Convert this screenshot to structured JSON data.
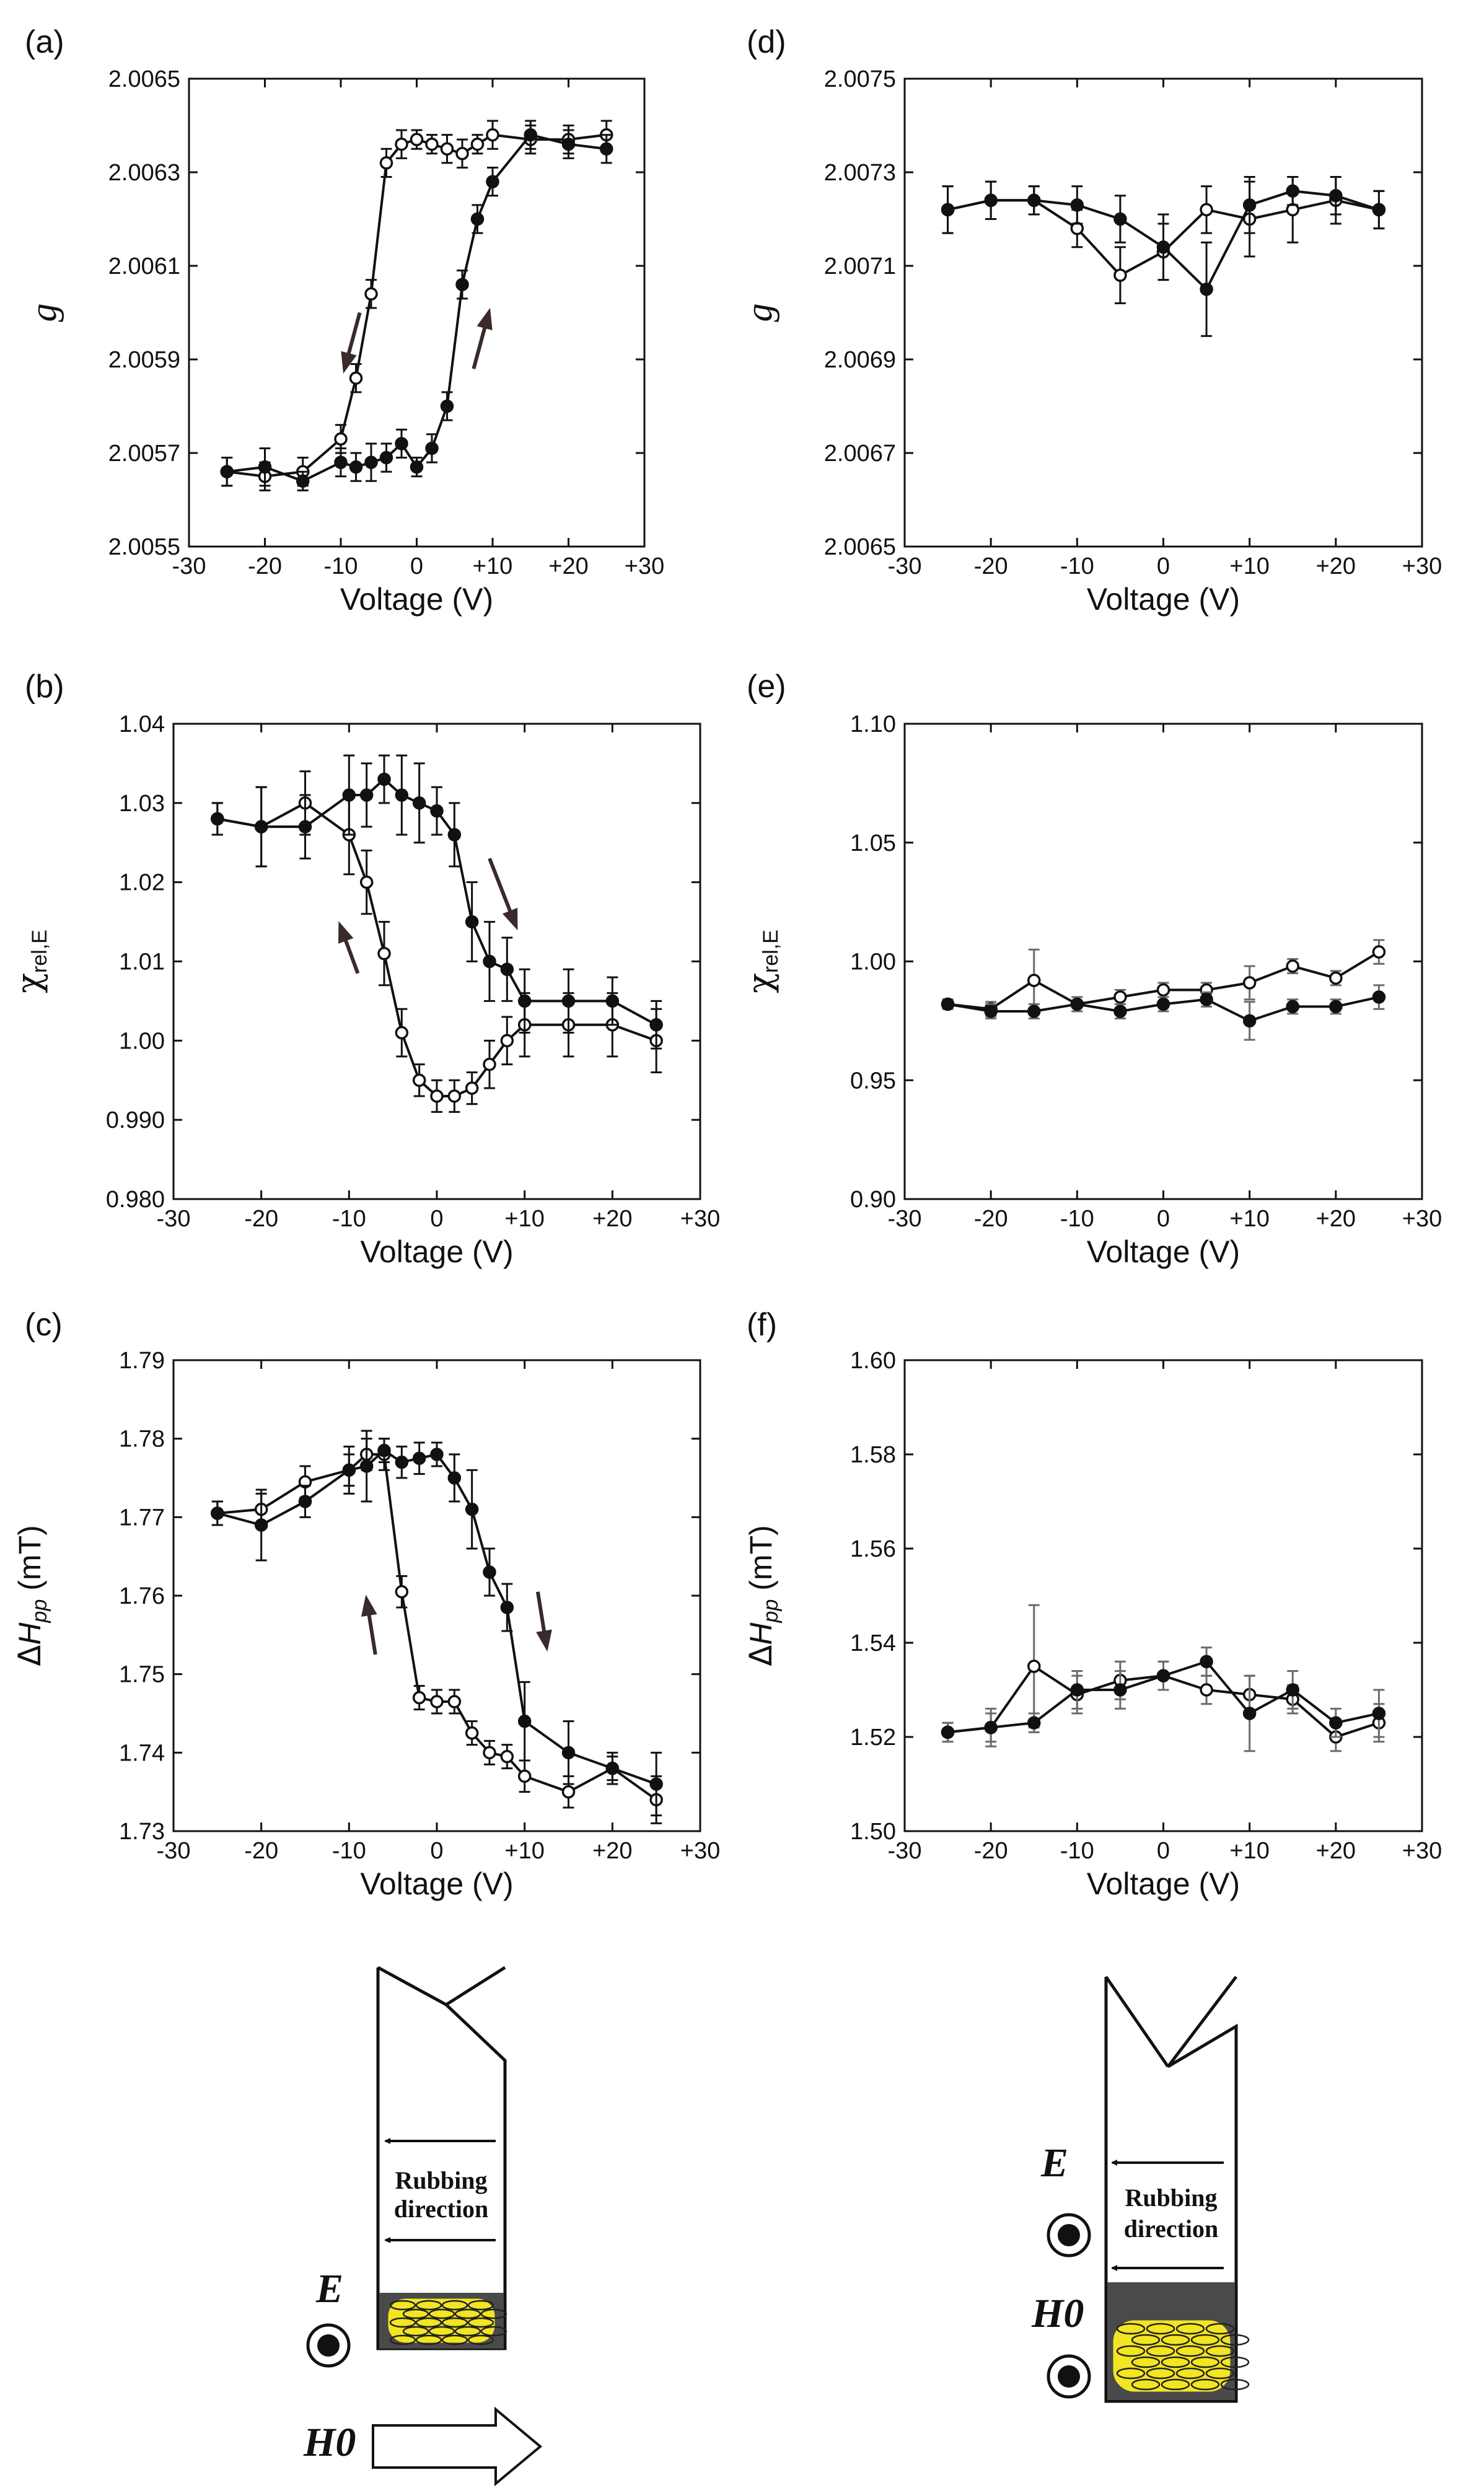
{
  "chart_data": [
    {
      "id": "a",
      "type": "line",
      "panel_label": "(a)",
      "ylabel": "g",
      "xlabel": "Voltage (V)",
      "xlim": [
        -30,
        30
      ],
      "ylim": [
        2.0055,
        2.0065
      ],
      "x_ticks": [
        -30,
        -20,
        -10,
        0,
        10,
        20,
        30
      ],
      "x_tick_labels": [
        "-30",
        "-20",
        "-10",
        "0",
        "+10",
        "+20",
        "+30"
      ],
      "y_ticks": [
        2.0055,
        2.0057,
        2.0059,
        2.0061,
        2.0063,
        2.0065
      ],
      "y_tick_labels": [
        "2.0055",
        "2.0057",
        "2.0059",
        "2.0061",
        "2.0063",
        "2.0065"
      ],
      "series": [
        {
          "marker": "open",
          "x": [
            -25,
            -20,
            -15,
            -10,
            -8,
            -6,
            -4,
            -2,
            0,
            2,
            4,
            6,
            8,
            10,
            15,
            20,
            25
          ],
          "y": [
            2.00566,
            2.00565,
            2.00566,
            2.00573,
            2.00586,
            2.00604,
            2.00632,
            2.00636,
            2.00637,
            2.00636,
            2.00635,
            2.00634,
            2.00636,
            2.00638,
            2.00637,
            2.00637,
            2.00638
          ],
          "err": [
            3e-05,
            3e-05,
            3e-05,
            3e-05,
            3e-05,
            3e-05,
            3e-05,
            3e-05,
            2e-05,
            2e-05,
            3e-05,
            3e-05,
            2e-05,
            3e-05,
            3e-05,
            3e-05,
            3e-05
          ]
        },
        {
          "marker": "filled",
          "x": [
            -25,
            -20,
            -15,
            -10,
            -8,
            -6,
            -4,
            -2,
            0,
            2,
            4,
            6,
            8,
            10,
            15,
            20,
            25
          ],
          "y": [
            2.00566,
            2.00567,
            2.00564,
            2.00568,
            2.00567,
            2.00568,
            2.00569,
            2.00572,
            2.00567,
            2.00571,
            2.0058,
            2.00606,
            2.0062,
            2.00628,
            2.00638,
            2.00636,
            2.00635
          ],
          "err": [
            3e-05,
            4e-05,
            2e-05,
            3e-05,
            3e-05,
            4e-05,
            3e-05,
            3e-05,
            2e-05,
            3e-05,
            3e-05,
            3e-05,
            3e-05,
            3e-05,
            3e-05,
            3e-05,
            3e-05
          ]
        }
      ],
      "arrows": [
        {
          "x1": -7.5,
          "y1": 2.006,
          "x2": -9.5,
          "y2": 2.00588
        },
        {
          "x1": 7.5,
          "y1": 2.00588,
          "x2": 9.5,
          "y2": 2.006
        }
      ]
    },
    {
      "id": "d",
      "type": "line",
      "panel_label": "(d)",
      "ylabel": "g",
      "xlabel": "Voltage (V)",
      "xlim": [
        -30,
        30
      ],
      "ylim": [
        2.0065,
        2.0075
      ],
      "x_ticks": [
        -30,
        -20,
        -10,
        0,
        10,
        20,
        30
      ],
      "x_tick_labels": [
        "-30",
        "-20",
        "-10",
        "0",
        "+10",
        "+20",
        "+30"
      ],
      "y_ticks": [
        2.0065,
        2.0067,
        2.0069,
        2.0071,
        2.0073,
        2.0075
      ],
      "y_tick_labels": [
        "2.0065",
        "2.0067",
        "2.0069",
        "2.0071",
        "2.0073",
        "2.0075"
      ],
      "series": [
        {
          "marker": "open",
          "x": [
            -25,
            -20,
            -15,
            -10,
            -5,
            0,
            5,
            10,
            15,
            20,
            25
          ],
          "y": [
            2.00722,
            2.00724,
            2.00724,
            2.00718,
            2.00708,
            2.00713,
            2.00722,
            2.0072,
            2.00722,
            2.00724,
            2.00722
          ],
          "err": [
            5e-05,
            4e-05,
            3e-05,
            4e-05,
            6e-05,
            6e-05,
            5e-05,
            8e-05,
            7e-05,
            5e-05,
            4e-05
          ]
        },
        {
          "marker": "filled",
          "x": [
            -25,
            -20,
            -15,
            -10,
            -5,
            0,
            5,
            10,
            15,
            20,
            25
          ],
          "y": [
            2.00722,
            2.00724,
            2.00724,
            2.00723,
            2.0072,
            2.00714,
            2.00705,
            2.00723,
            2.00726,
            2.00725,
            2.00722
          ],
          "err": [
            5e-05,
            4e-05,
            3e-05,
            4e-05,
            5e-05,
            7e-05,
            0.0001,
            6e-05,
            3e-05,
            4e-05,
            4e-05
          ]
        }
      ]
    },
    {
      "id": "b",
      "type": "line",
      "panel_label": "(b)",
      "ylabel": "χrel,E",
      "xlabel": "Voltage (V)",
      "xlim": [
        -30,
        30
      ],
      "ylim": [
        0.98,
        1.04
      ],
      "x_ticks": [
        -30,
        -20,
        -10,
        0,
        10,
        20,
        30
      ],
      "x_tick_labels": [
        "-30",
        "-20",
        "-10",
        "0",
        "+10",
        "+20",
        "+30"
      ],
      "y_ticks": [
        0.98,
        0.99,
        1.0,
        1.01,
        1.02,
        1.03,
        1.04
      ],
      "y_tick_labels": [
        "0.980",
        "0.990",
        "1.00",
        "1.01",
        "1.02",
        "1.03",
        "1.04"
      ],
      "series": [
        {
          "marker": "open",
          "x": [
            -25,
            -20,
            -15,
            -10,
            -8,
            -6,
            -4,
            -2,
            0,
            2,
            4,
            6,
            8,
            10,
            15,
            20,
            25
          ],
          "y": [
            1.028,
            1.027,
            1.03,
            1.026,
            1.02,
            1.011,
            1.001,
            0.995,
            0.993,
            0.993,
            0.994,
            0.997,
            1.0,
            1.002,
            1.002,
            1.002,
            1.0
          ],
          "err": [
            0.002,
            0.005,
            0.004,
            0.005,
            0.004,
            0.004,
            0.003,
            0.002,
            0.002,
            0.002,
            0.002,
            0.003,
            0.003,
            0.004,
            0.004,
            0.004,
            0.004
          ]
        },
        {
          "marker": "filled",
          "x": [
            -25,
            -20,
            -15,
            -10,
            -8,
            -6,
            -4,
            -2,
            0,
            2,
            4,
            6,
            8,
            10,
            15,
            20,
            25
          ],
          "y": [
            1.028,
            1.027,
            1.027,
            1.031,
            1.031,
            1.033,
            1.031,
            1.03,
            1.029,
            1.026,
            1.015,
            1.01,
            1.009,
            1.005,
            1.005,
            1.005,
            1.002
          ],
          "err": [
            0.002,
            0.005,
            0.004,
            0.005,
            0.004,
            0.003,
            0.005,
            0.005,
            0.003,
            0.004,
            0.005,
            0.005,
            0.004,
            0.004,
            0.004,
            0.003,
            0.003
          ]
        }
      ],
      "arrows": [
        {
          "x1": -9,
          "y1": 1.0085,
          "x2": -11,
          "y2": 1.0145
        },
        {
          "x1": 6,
          "y1": 1.023,
          "x2": 9,
          "y2": 1.0145
        }
      ]
    },
    {
      "id": "e",
      "type": "line",
      "panel_label": "(e)",
      "ylabel": "χrel,E",
      "xlabel": "Voltage (V)",
      "xlim": [
        -30,
        30
      ],
      "ylim": [
        0.9,
        1.1
      ],
      "x_ticks": [
        -30,
        -20,
        -10,
        0,
        10,
        20,
        30
      ],
      "x_tick_labels": [
        "-30",
        "-20",
        "-10",
        "0",
        "+10",
        "+20",
        "+30"
      ],
      "y_ticks": [
        0.9,
        0.95,
        1.0,
        1.05,
        1.1
      ],
      "y_tick_labels": [
        "0.90",
        "0.95",
        "1.00",
        "1.05",
        "1.10"
      ],
      "series": [
        {
          "marker": "open",
          "x": [
            -25,
            -20,
            -15,
            -10,
            -5,
            0,
            5,
            10,
            15,
            20,
            25
          ],
          "y": [
            0.982,
            0.98,
            0.992,
            0.982,
            0.985,
            0.988,
            0.988,
            0.991,
            0.998,
            0.993,
            1.004
          ],
          "err": [
            0.002,
            0.003,
            0.013,
            0.003,
            0.003,
            0.003,
            0.003,
            0.007,
            0.003,
            0.003,
            0.005
          ]
        },
        {
          "marker": "filled",
          "x": [
            -25,
            -20,
            -15,
            -10,
            -5,
            0,
            5,
            10,
            15,
            20,
            25
          ],
          "y": [
            0.982,
            0.979,
            0.979,
            0.982,
            0.979,
            0.982,
            0.984,
            0.975,
            0.981,
            0.981,
            0.985
          ],
          "err": [
            0.002,
            0.003,
            0.003,
            0.003,
            0.003,
            0.003,
            0.003,
            0.008,
            0.003,
            0.003,
            0.005
          ]
        }
      ]
    },
    {
      "id": "c",
      "type": "line",
      "panel_label": "(c)",
      "ylabel": "ΔHpp (mT)",
      "xlabel": "Voltage (V)",
      "xlim": [
        -30,
        30
      ],
      "ylim": [
        1.73,
        1.79
      ],
      "x_ticks": [
        -30,
        -20,
        -10,
        0,
        10,
        20,
        30
      ],
      "x_tick_labels": [
        "-30",
        "-20",
        "-10",
        "0",
        "+10",
        "+20",
        "+30"
      ],
      "y_ticks": [
        1.73,
        1.74,
        1.75,
        1.76,
        1.77,
        1.78,
        1.79
      ],
      "y_tick_labels": [
        "1.73",
        "1.74",
        "1.75",
        "1.76",
        "1.77",
        "1.78",
        "1.79"
      ],
      "series": [
        {
          "marker": "open",
          "x": [
            -25,
            -20,
            -15,
            -10,
            -8,
            -6,
            -4,
            -2,
            0,
            2,
            4,
            6,
            8,
            10,
            15,
            20,
            25
          ],
          "y": [
            1.7705,
            1.771,
            1.7745,
            1.776,
            1.778,
            1.778,
            1.7605,
            1.747,
            1.7465,
            1.7465,
            1.7425,
            1.74,
            1.7395,
            1.737,
            1.735,
            1.738,
            1.734
          ],
          "err": [
            0.0015,
            0.002,
            0.002,
            0.002,
            0.002,
            0.002,
            0.002,
            0.0015,
            0.0015,
            0.0015,
            0.0015,
            0.0015,
            0.0015,
            0.002,
            0.002,
            0.0015,
            0.003
          ]
        },
        {
          "marker": "filled",
          "x": [
            -25,
            -20,
            -15,
            -10,
            -8,
            -6,
            -4,
            -2,
            0,
            2,
            4,
            6,
            8,
            10,
            15,
            20,
            25
          ],
          "y": [
            1.7705,
            1.769,
            1.772,
            1.776,
            1.7765,
            1.7785,
            1.777,
            1.7775,
            1.778,
            1.775,
            1.771,
            1.763,
            1.7585,
            1.744,
            1.74,
            1.738,
            1.736
          ],
          "err": [
            0.0015,
            0.0045,
            0.002,
            0.003,
            0.0045,
            0.0015,
            0.002,
            0.002,
            0.0015,
            0.003,
            0.005,
            0.003,
            0.003,
            0.005,
            0.004,
            0.002,
            0.004
          ]
        }
      ],
      "arrows": [
        {
          "x1": -7,
          "y1": 1.7525,
          "x2": -8,
          "y2": 1.7595
        },
        {
          "x1": 11.5,
          "y1": 1.7605,
          "x2": 12.5,
          "y2": 1.7535
        }
      ]
    },
    {
      "id": "f",
      "type": "line",
      "panel_label": "(f)",
      "ylabel": "ΔHpp (mT)",
      "xlabel": "Voltage (V)",
      "xlim": [
        -30,
        30
      ],
      "ylim": [
        1.5,
        1.6
      ],
      "x_ticks": [
        -30,
        -20,
        -10,
        0,
        10,
        20,
        30
      ],
      "x_tick_labels": [
        "-30",
        "-20",
        "-10",
        "0",
        "+10",
        "+20",
        "+30"
      ],
      "y_ticks": [
        1.5,
        1.52,
        1.54,
        1.56,
        1.58,
        1.6
      ],
      "y_tick_labels": [
        "1.50",
        "1.52",
        "1.54",
        "1.56",
        "1.58",
        "1.60"
      ],
      "series": [
        {
          "marker": "open",
          "x": [
            -25,
            -20,
            -15,
            -10,
            -5,
            0,
            5,
            10,
            15,
            20,
            25
          ],
          "y": [
            1.521,
            1.522,
            1.535,
            1.529,
            1.532,
            1.533,
            1.53,
            1.529,
            1.528,
            1.52,
            1.523
          ],
          "err": [
            0.002,
            0.003,
            0.013,
            0.004,
            0.004,
            0.003,
            0.003,
            0.004,
            0.003,
            0.003,
            0.004
          ]
        },
        {
          "marker": "filled",
          "x": [
            -25,
            -20,
            -15,
            -10,
            -5,
            0,
            5,
            10,
            15,
            20,
            25
          ],
          "y": [
            1.521,
            1.522,
            1.523,
            1.53,
            1.53,
            1.533,
            1.536,
            1.525,
            1.53,
            1.523,
            1.525
          ],
          "err": [
            0.002,
            0.004,
            0.002,
            0.004,
            0.004,
            0.003,
            0.003,
            0.008,
            0.004,
            0.003,
            0.005
          ]
        }
      ]
    }
  ],
  "diagram_left": {
    "rubbing_line1": "Rubbing",
    "rubbing_line2": "direction",
    "e_label": "E",
    "h_label": "H0"
  },
  "diagram_right": {
    "rubbing_line1": "Rubbing",
    "rubbing_line2": "direction",
    "e_label": "E",
    "h_label": "H0"
  },
  "colors": {
    "line": "#111111",
    "errorbar_grey": "#6b6b6b",
    "arrow": "#3a2a2a",
    "fill_dark": "#4a4a4a",
    "lc_yellow": "#f2e522"
  }
}
